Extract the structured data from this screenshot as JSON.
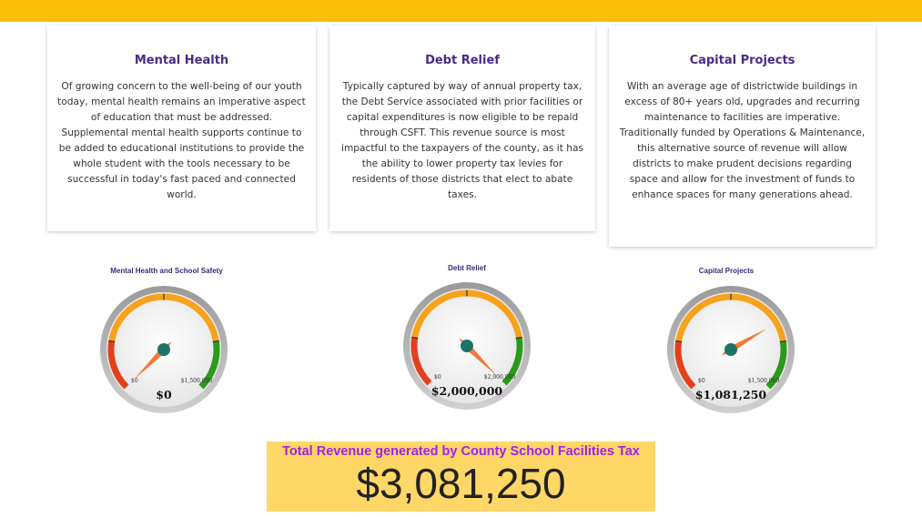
{
  "cards": [
    {
      "title": "Mental Health",
      "body": "Of growing concern to the well-being of our youth today, mental health remains an imperative aspect of education that must be addressed. Supplemental mental health supports continue to be added to educational institutions to provide the whole student with the tools necessary to be successful in today's fast paced and connected world."
    },
    {
      "title": "Debt Relief",
      "body": "Typically captured by way of annual property tax, the Debt Service associated with prior facilities or capital expenditures is now eligible to be repaid through CSFT. This revenue source is most impactful to the taxpayers of the county, as it has the ability to lower property tax levies for residents of those districts that elect to abate taxes."
    },
    {
      "title": "Capital Projects",
      "body": "With an average age of districtwide buildings in excess of 80+ years old, upgrades and recurring maintenance to facilities are imperative. Traditionally funded by Operations & Maintenance, this alternative source of revenue will allow districts to make prudent decisions regarding space and allow for the investment of funds to enhance spaces for many generations ahead."
    }
  ],
  "gauges": [
    {
      "title": "Mental Health and School Safety",
      "min_label": "$0",
      "max_label": "$1,500,000",
      "min": 0,
      "max": 1500000,
      "value": 0,
      "value_label": "$0"
    },
    {
      "title": "Debt Relief",
      "min_label": "$0",
      "max_label": "$2,000,000",
      "min": 0,
      "max": 2000000,
      "value": 2000000,
      "value_label": "$2,000,000"
    },
    {
      "title": "Capital Projects",
      "min_label": "$0",
      "max_label": "$1,500,000",
      "min": 0,
      "max": 1500000,
      "value": 1081250,
      "value_label": "$1,081,250"
    }
  ],
  "total": {
    "label": "Total Revenue generated by County School Facilities Tax",
    "value": "$3,081,250"
  },
  "colors": {
    "top_bar": "#fcbf08",
    "title": "#4b2a86",
    "gauge_low": "#e2401c",
    "gauge_mid": "#f6a21a",
    "gauge_high": "#2a9a1a",
    "needle": "#f07a3a",
    "hub": "#1c7467",
    "total_label": "#a020f0",
    "total_bg": "#ffd766"
  }
}
